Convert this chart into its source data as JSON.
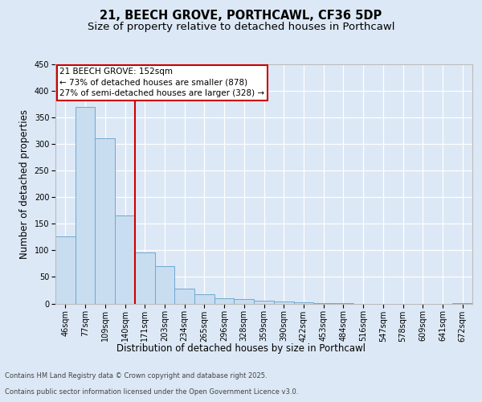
{
  "title1": "21, BEECH GROVE, PORTHCAWL, CF36 5DP",
  "title2": "Size of property relative to detached houses in Porthcawl",
  "xlabel": "Distribution of detached houses by size in Porthcawl",
  "ylabel": "Number of detached properties",
  "categories": [
    "46sqm",
    "77sqm",
    "109sqm",
    "140sqm",
    "171sqm",
    "203sqm",
    "234sqm",
    "265sqm",
    "296sqm",
    "328sqm",
    "359sqm",
    "390sqm",
    "422sqm",
    "453sqm",
    "484sqm",
    "516sqm",
    "547sqm",
    "578sqm",
    "609sqm",
    "641sqm",
    "672sqm"
  ],
  "values": [
    127,
    370,
    311,
    165,
    96,
    70,
    28,
    18,
    10,
    8,
    5,
    4,
    2,
    1,
    1,
    0,
    0,
    0,
    0,
    0,
    1
  ],
  "bar_color": "#c9ddf0",
  "bar_edgecolor": "#6fa8d0",
  "vline_x": 3.5,
  "vline_color": "#cc0000",
  "annotation_text": "21 BEECH GROVE: 152sqm\n← 73% of detached houses are smaller (878)\n27% of semi-detached houses are larger (328) →",
  "annotation_box_facecolor": "#ffffff",
  "annotation_box_edgecolor": "#cc0000",
  "ylim": [
    0,
    450
  ],
  "yticks": [
    0,
    50,
    100,
    150,
    200,
    250,
    300,
    350,
    400,
    450
  ],
  "bg_color": "#dce8f5",
  "footer1": "Contains HM Land Registry data © Crown copyright and database right 2025.",
  "footer2": "Contains public sector information licensed under the Open Government Licence v3.0.",
  "title_fontsize": 10.5,
  "subtitle_fontsize": 9.5,
  "tick_fontsize": 7,
  "ylabel_fontsize": 8.5,
  "xlabel_fontsize": 8.5,
  "footer_fontsize": 6,
  "annot_fontsize": 7.5
}
